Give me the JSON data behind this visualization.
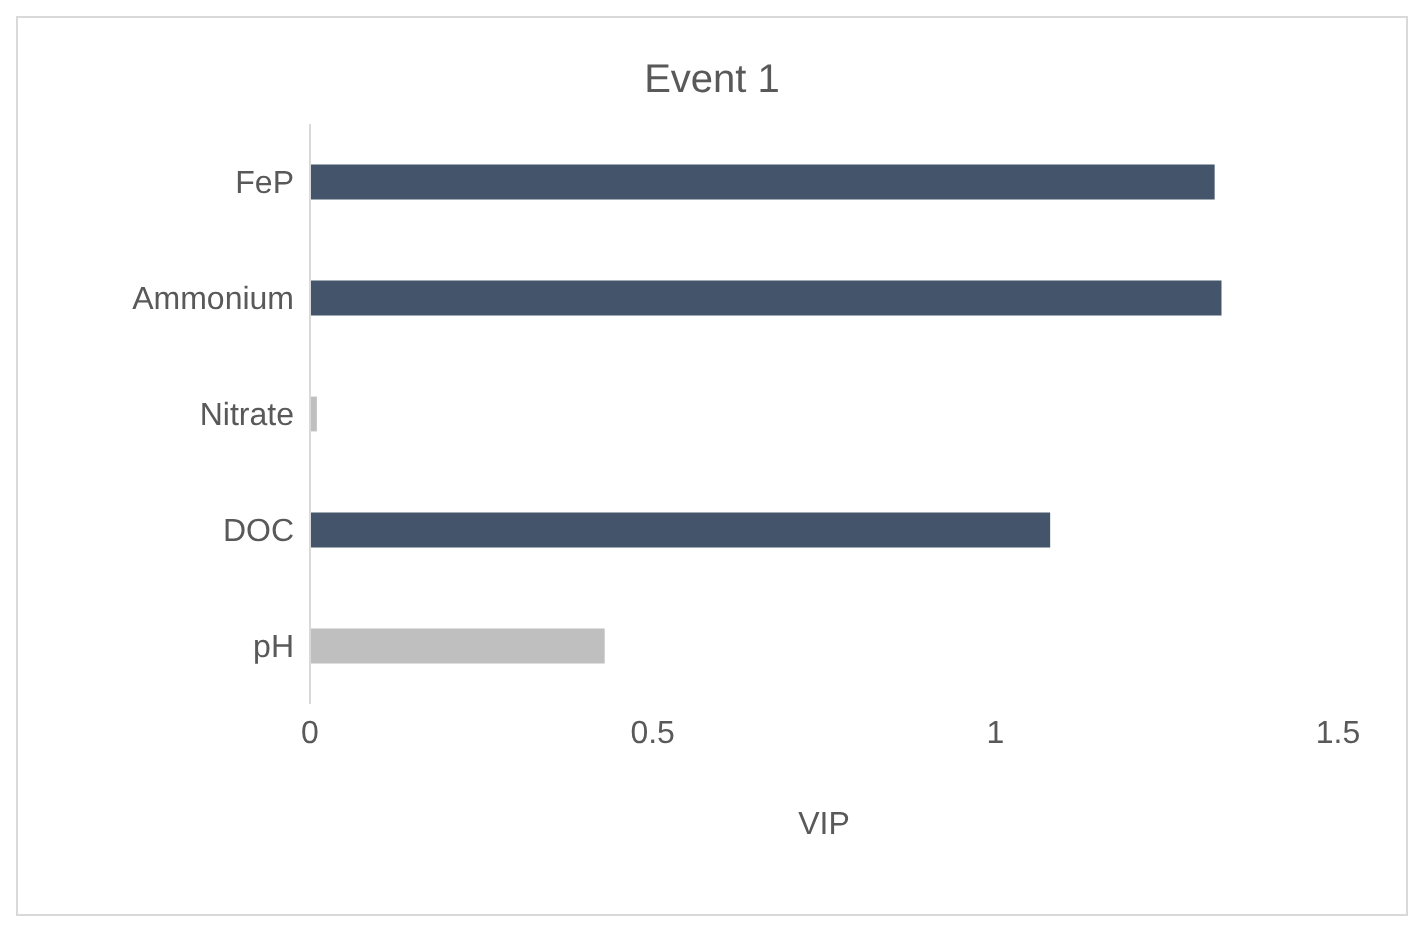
{
  "chart_data": {
    "type": "bar",
    "orientation": "horizontal",
    "title": "Event 1",
    "xlabel": "VIP",
    "categories": [
      "FeP",
      "Ammonium",
      "Nitrate",
      "DOC",
      "pH"
    ],
    "values": [
      1.32,
      1.33,
      0.01,
      1.08,
      0.43
    ],
    "colors": [
      "#44546a",
      "#44546a",
      "#bfbfbf",
      "#44546a",
      "#bfbfbf"
    ],
    "xlim": [
      0,
      1.5
    ],
    "xticks": [
      0,
      0.5,
      1,
      1.5
    ],
    "grid": false
  }
}
